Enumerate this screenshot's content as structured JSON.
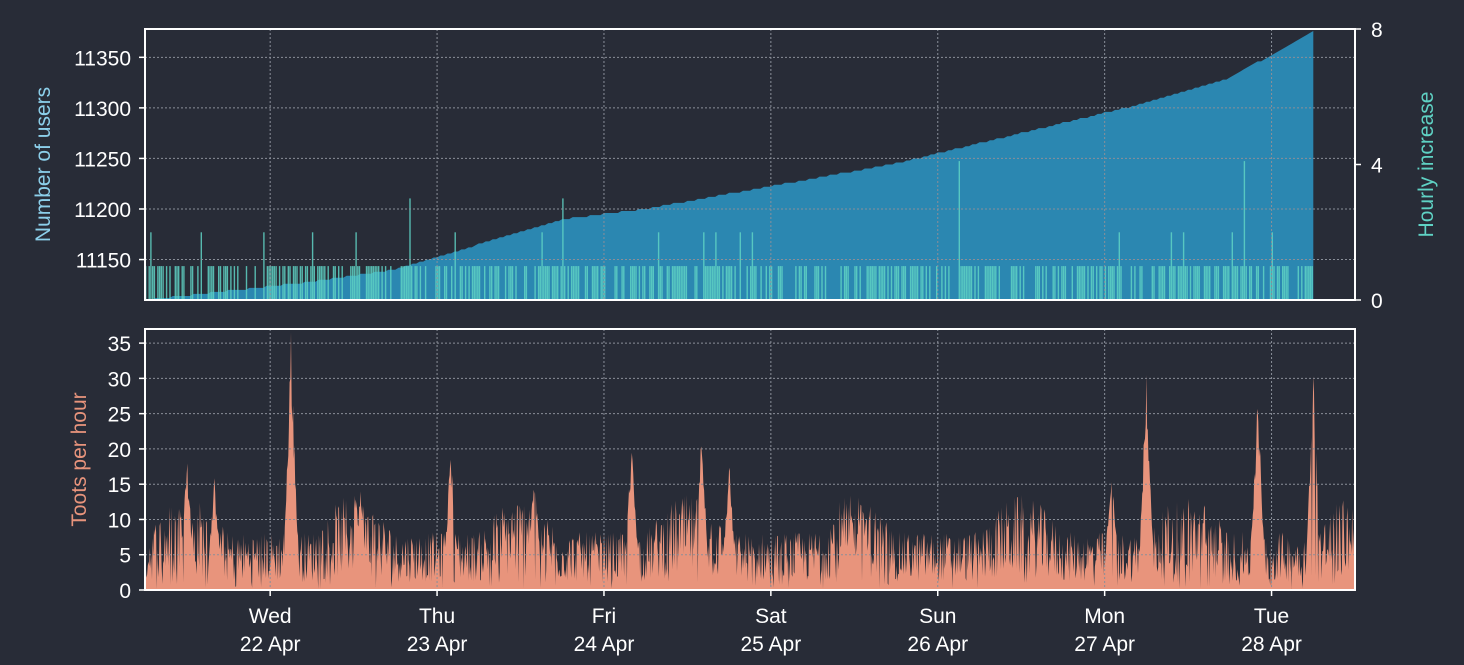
{
  "theme": {
    "background": "#282c37",
    "frame": "#ffffff",
    "grid": "#8a8f99",
    "users_color": "#2b87b1",
    "users_label_color": "#8ccfea",
    "hourly_color": "#5fd2c4",
    "toots_color": "#e8947c",
    "tick_color": "#ffffff"
  },
  "chart_data": [
    {
      "id": "users",
      "type": "area",
      "ylabel": "Number of users",
      "y2label": "Hourly increase",
      "ylim": [
        11110,
        11378
      ],
      "y2lim": [
        0,
        8
      ],
      "yticks": [
        "11150",
        "11200",
        "11250",
        "11300",
        "11350"
      ],
      "y2ticks": [
        "0",
        "4",
        "8"
      ],
      "grid": true,
      "series": [
        {
          "kind": "cumulative-area",
          "x_hours": [
            0,
            24,
            36,
            48,
            60,
            72,
            84,
            96,
            108,
            120,
            132,
            144,
            156,
            168
          ],
          "values": [
            11110,
            11128,
            11140,
            11165,
            11190,
            11200,
            11215,
            11230,
            11245,
            11265,
            11285,
            11305,
            11330,
            11375
          ]
        },
        {
          "kind": "hourly-increase-bars",
          "spikes": [
            {
              "hour": 8,
              "value": 2
            },
            {
              "hour": 17,
              "value": 2
            },
            {
              "hour": 38,
              "value": 3
            },
            {
              "hour": 60,
              "value": 3
            },
            {
              "hour": 117,
              "value": 4.1
            },
            {
              "hour": 158,
              "value": 4.1
            },
            {
              "hour": 162,
              "value": 2
            }
          ]
        }
      ]
    },
    {
      "id": "toots",
      "type": "area",
      "ylabel": "Toots per hour",
      "ylim": [
        0,
        37
      ],
      "yticks": [
        "0",
        "5",
        "10",
        "15",
        "20",
        "25",
        "30",
        "35"
      ],
      "grid": true,
      "peaks": [
        {
          "hour": 6,
          "value": 20
        },
        {
          "hour": 10,
          "value": 16
        },
        {
          "hour": 21,
          "value": 37
        },
        {
          "hour": 31,
          "value": 15
        },
        {
          "hour": 44,
          "value": 21
        },
        {
          "hour": 56,
          "value": 17
        },
        {
          "hour": 70,
          "value": 22
        },
        {
          "hour": 80,
          "value": 22
        },
        {
          "hour": 84,
          "value": 19
        },
        {
          "hour": 103,
          "value": 15
        },
        {
          "hour": 139,
          "value": 20
        },
        {
          "hour": 144,
          "value": 32
        },
        {
          "hour": 160,
          "value": 29
        },
        {
          "hour": 168,
          "value": 31
        }
      ]
    }
  ],
  "x_axis": {
    "hours_span": 174,
    "ticks": [
      {
        "hour": 18,
        "day": "Wed",
        "date": "22 Apr"
      },
      {
        "hour": 42,
        "day": "Thu",
        "date": "23 Apr"
      },
      {
        "hour": 66,
        "day": "Fri",
        "date": "24 Apr"
      },
      {
        "hour": 90,
        "day": "Sat",
        "date": "25 Apr"
      },
      {
        "hour": 114,
        "day": "Sun",
        "date": "26 Apr"
      },
      {
        "hour": 138,
        "day": "Mon",
        "date": "27 Apr"
      },
      {
        "hour": 162,
        "day": "Tue",
        "date": "28 Apr"
      }
    ]
  }
}
